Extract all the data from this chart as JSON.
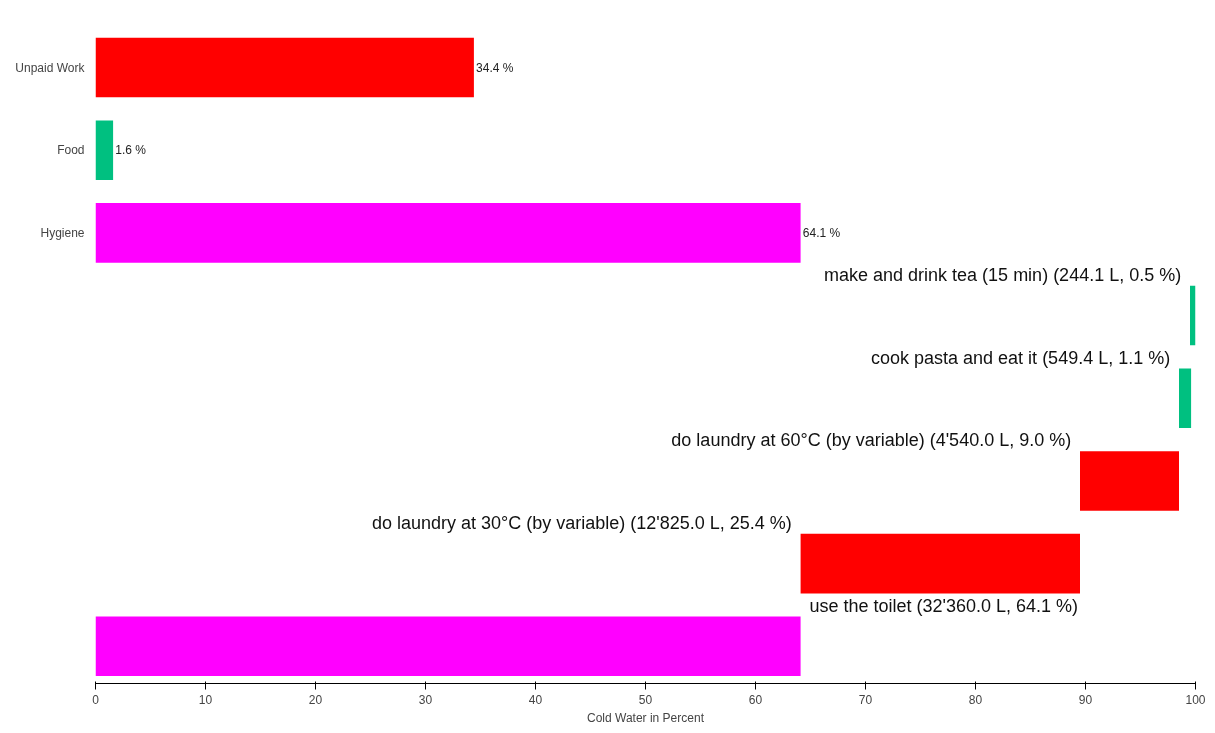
{
  "chart_data": {
    "type": "bar",
    "orientation": "horizontal",
    "xlabel": "Cold Water in Percent",
    "categories": [
      "Unpaid Work",
      "Food",
      "Hygiene",
      null,
      null,
      null,
      null,
      null
    ],
    "values": [
      34.4,
      1.6,
      64.1,
      0.5,
      1.1,
      9.0,
      25.4,
      64.1
    ],
    "base": [
      0,
      0,
      0,
      99.5,
      98.5,
      89.5,
      64.1,
      0
    ],
    "colors": [
      "#ff0000",
      "#00c080",
      "#ff00ff",
      "#00c080",
      "#00c080",
      "#ff0000",
      "#ff0000",
      "#ff00ff"
    ],
    "value_labels": [
      "34.4 %",
      "1.6 %",
      "64.1 %",
      null,
      null,
      null,
      null,
      null
    ],
    "annotations": [
      "make and drink tea (15 min) (244.1 L, 0.5 %)",
      "cook pasta and eat it (549.4 L, 1.1 %)",
      "do laundry at 60°C (by variable) (4'540.0 L, 9.0 %)",
      "do laundry at 30°C (by variable) (12'825.0 L, 25.4 %)",
      "use the toilet (32'360.0 L, 64.1 %)"
    ],
    "xlim": [
      0,
      100
    ],
    "xticks": [
      0,
      10,
      20,
      30,
      40,
      50,
      60,
      70,
      80,
      90,
      100
    ],
    "grid": false
  }
}
